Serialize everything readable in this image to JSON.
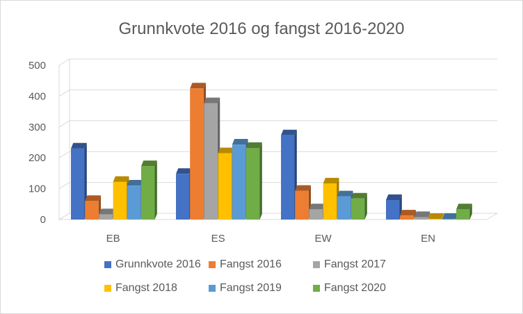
{
  "chart_data": {
    "type": "bar",
    "title": "Grunnkvote 2016 og fangst 2016-2020",
    "categories": [
      "EB",
      "ES",
      "EW",
      "EN"
    ],
    "yticks": [
      "0",
      "100",
      "200",
      "300",
      "400",
      "500"
    ],
    "ylim": [
      0,
      500
    ],
    "grid": true,
    "legend_position": "bottom",
    "series": [
      {
        "name": "Grunnkvote 2016",
        "color": "#4472c4",
        "values": [
          230,
          148,
          273,
          63
        ]
      },
      {
        "name": "Fangst 2016",
        "color": "#ed7d31",
        "values": [
          60,
          425,
          93,
          13
        ]
      },
      {
        "name": "Fangst 2017",
        "color": "#a5a5a5",
        "values": [
          17,
          377,
          33,
          8
        ]
      },
      {
        "name": "Fangst 2018",
        "color": "#ffc000",
        "values": [
          122,
          215,
          117,
          2
        ]
      },
      {
        "name": "Fangst 2019",
        "color": "#5b9bd5",
        "values": [
          110,
          243,
          75,
          2
        ]
      },
      {
        "name": "Fangst 2020",
        "color": "#70ad47",
        "values": [
          173,
          232,
          68,
          33
        ]
      }
    ]
  }
}
